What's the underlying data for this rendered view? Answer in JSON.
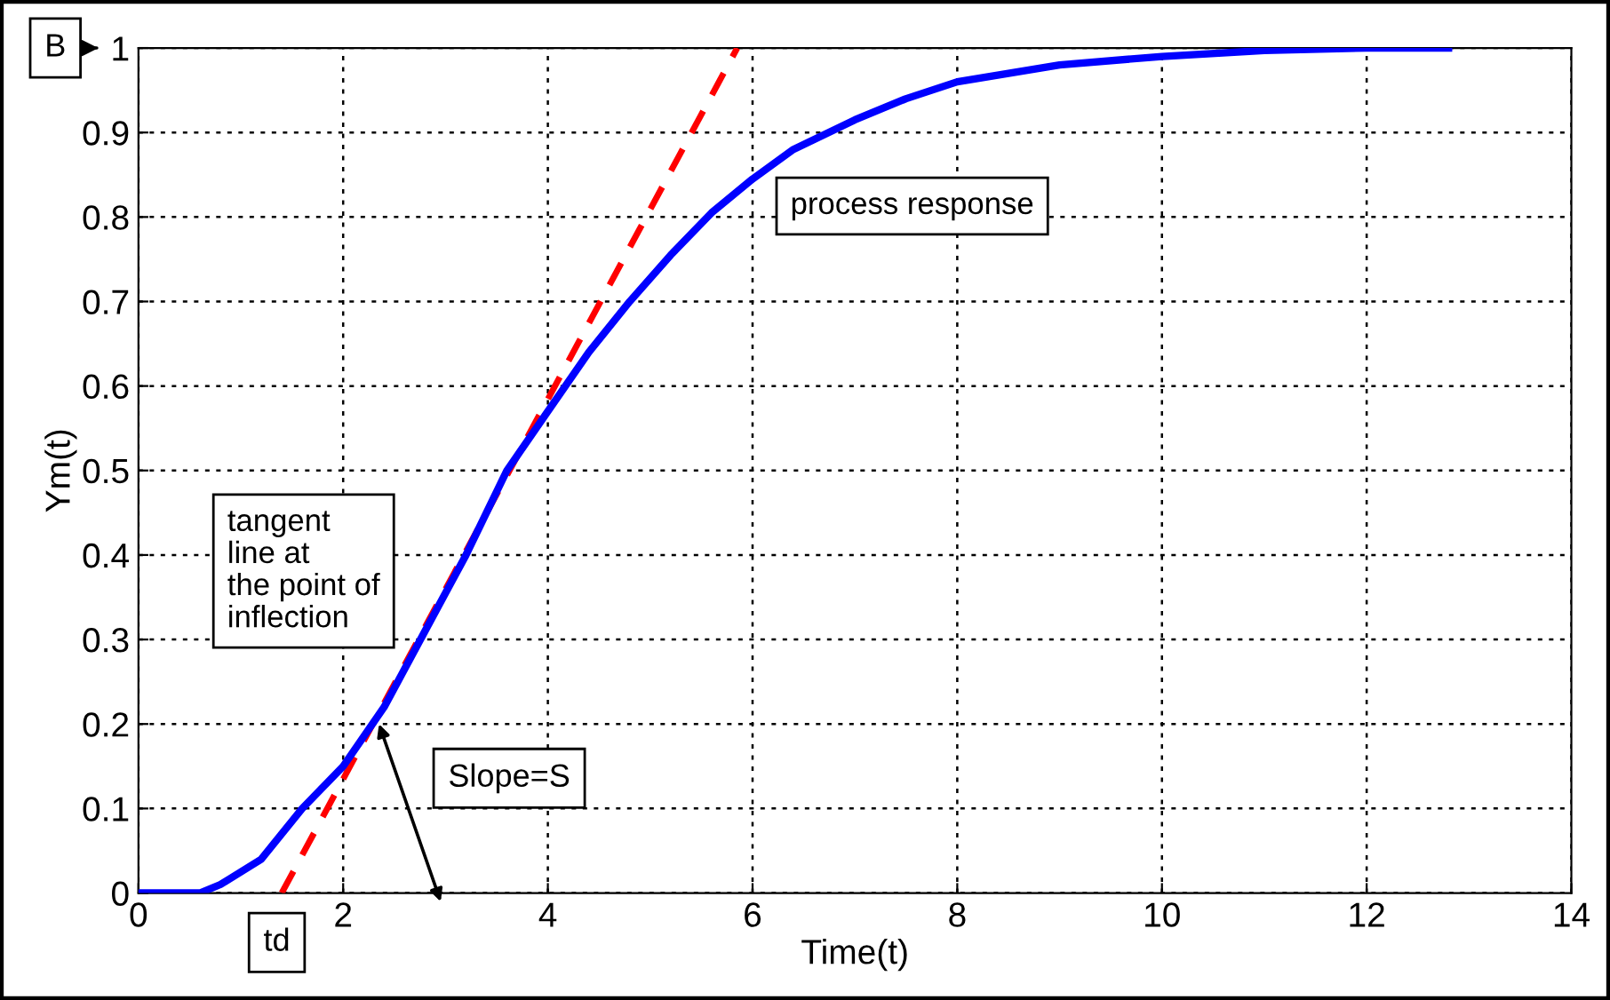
{
  "chart_data": {
    "type": "line",
    "xlabel": "Time(t)",
    "ylabel": "Ym(t)",
    "xlim": [
      0,
      14
    ],
    "xticks": [
      0,
      2,
      4,
      6,
      8,
      10,
      12,
      14
    ],
    "ylim": [
      0,
      1
    ],
    "yticks": [
      0,
      0.1,
      0.2,
      0.3,
      0.4,
      0.5,
      0.6,
      0.7,
      0.8,
      0.9,
      1
    ],
    "grid": true,
    "legend": false,
    "marker": "none",
    "series": [
      {
        "name": "process response",
        "color": "#0000ff",
        "line_style": "solid",
        "x": [
          0,
          0.6,
          0.8,
          1.2,
          1.6,
          2,
          2.4,
          2.8,
          3.2,
          3.6,
          4,
          4.4,
          4.8,
          5.2,
          5.6,
          6,
          6.4,
          7,
          7.5,
          8,
          9,
          10,
          11,
          12,
          12.8
        ],
        "values": [
          0,
          0,
          0.01,
          0.04,
          0.1,
          0.15,
          0.22,
          0.31,
          0.4,
          0.5,
          0.57,
          0.64,
          0.7,
          0.755,
          0.805,
          0.845,
          0.88,
          0.915,
          0.94,
          0.96,
          0.98,
          0.99,
          0.997,
          1,
          1
        ]
      },
      {
        "name": "tangent\nline at\nthe point of\ninflection",
        "color": "#ff0000",
        "line_style": "dashed",
        "x": [
          1.4,
          5.85
        ],
        "values": [
          0,
          1
        ]
      }
    ],
    "annotations": [
      "B",
      {
        "text": "td",
        "x": 1.4,
        "y": 0
      },
      {
        "text": "Slope=S",
        "x": 2.35,
        "y": 0.2
      }
    ]
  }
}
